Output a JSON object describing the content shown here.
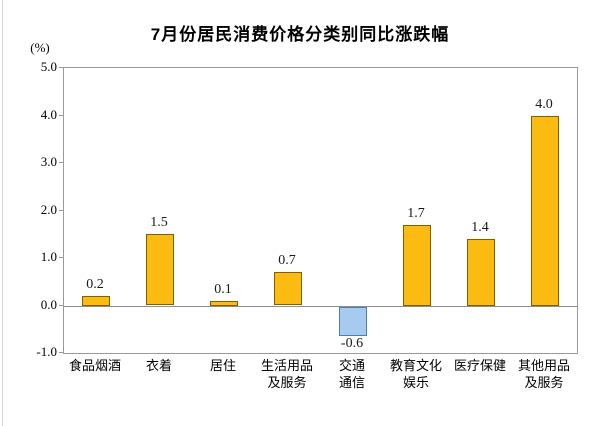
{
  "chart": {
    "title": "7月份居民消费价格分类别同比涨跌幅",
    "unit_label": "(%)"
  },
  "chart_data": {
    "type": "bar",
    "title": "7月份居民消费价格分类别同比涨跌幅",
    "ylabel": "(%)",
    "xlabel": "",
    "categories": [
      "食品烟酒",
      "衣着",
      "居住",
      "生活用品\n及服务",
      "交通\n通信",
      "教育文化\n娱乐",
      "医疗保健",
      "其他用品\n及服务"
    ],
    "values": [
      0.2,
      1.5,
      0.1,
      0.7,
      -0.6,
      1.7,
      1.4,
      4.0
    ],
    "data_labels": [
      "0.2",
      "1.5",
      "0.1",
      "0.7",
      "-0.6",
      "1.7",
      "1.4",
      "4.0"
    ],
    "ylim": [
      -1.0,
      5.0
    ],
    "ytick_labels": [
      "5.0",
      "4.0",
      "3.0",
      "2.0",
      "1.0",
      "0.0",
      "-1.0"
    ],
    "grid": false,
    "legend_position": "none",
    "colors": {
      "positive_fill": "#FBBB10",
      "positive_border": "#7F6000",
      "negative_fill": "#A6CBEE",
      "negative_border": "#4A7EBB",
      "plot_border": "#9a9a9a",
      "zero_line": "#8c8c8c",
      "text": "#000000"
    }
  }
}
